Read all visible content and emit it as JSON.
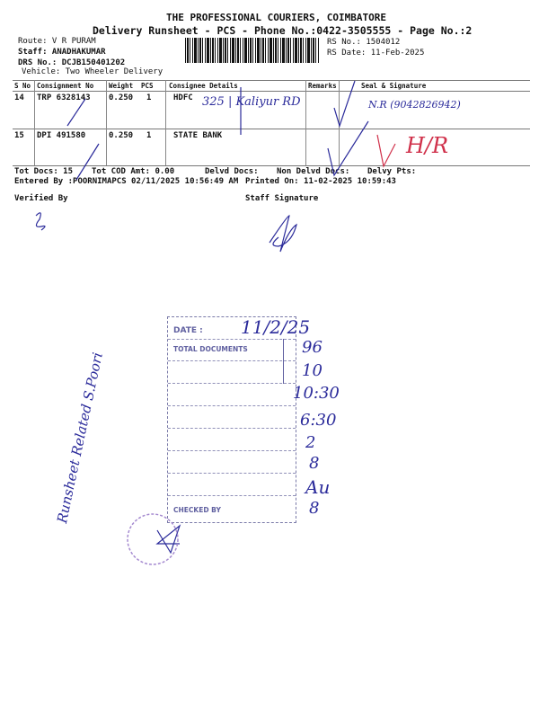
{
  "header": {
    "company": "THE PROFESSIONAL COURIERS, COIMBATORE",
    "subtitle": "Delivery Runsheet - PCS - Phone No.:0422-3505555 - Page No.:2",
    "route": "Route: V R PURAM",
    "staff": "Staff: ANADHAKUMAR",
    "drs_no": "DRS No.: DCJB150401202",
    "vehicle": "Vehicle: Two Wheeler Delivery",
    "rs_no": "RS No.: 1504012",
    "rs_date": "RS Date: 11-Feb-2025"
  },
  "table": {
    "columns": [
      "S No",
      "Consignment No",
      "Weight",
      "PCS",
      "Consignee Details",
      "Remarks",
      "Seal & Signature"
    ],
    "rows": [
      {
        "sno": "14",
        "consignment": "TRP 6328143",
        "weight": "0.250",
        "pcs": "1",
        "consignee": "HDFC",
        "hand_address": "325 | Kaliyur RD",
        "hand_seal": "N.R (9042826942)"
      },
      {
        "sno": "15",
        "consignment": "DPI 491580",
        "weight": "0.250",
        "pcs": "1",
        "consignee": "STATE BANK",
        "hand_seal": "H/R"
      }
    ]
  },
  "footer": {
    "tot_docs": "Tot Docs:  15",
    "tot_cod": "Tot COD Amt:    0.00",
    "delvd_docs": "Delvd Docs:",
    "non_delvd": "Non Delvd Docs:",
    "delvy_pts": "Delvy Pts:",
    "entered_by": "Entered By :POORNIMAPCS 02/11/2025 10:56:49 AM",
    "printed_on": "Printed On: 11-02-2025 10:59:43",
    "verified_by": "Verified By",
    "staff_signature": "Staff Signature"
  },
  "stamp": {
    "date_label": "DATE :",
    "date_value": "11/2/25",
    "total_docs_label": "TOTAL DOCUMENTS",
    "values": [
      "96",
      "10",
      "10:30",
      "6:30",
      "2",
      "8",
      "Au",
      "8"
    ],
    "checked_by": "CHECKED BY"
  },
  "margin_note": "Runsheet Related S.Poori",
  "colors": {
    "ink_blue": "#2a2a9a",
    "ink_red": "#d0304a",
    "stamp": "#6060a0"
  }
}
